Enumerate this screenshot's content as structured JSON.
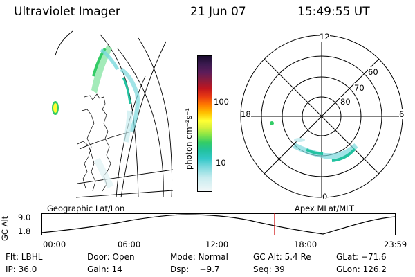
{
  "header": {
    "instrument": "Ultraviolet Imager",
    "date": "21 Jun 07",
    "time": "15:49:55 UT"
  },
  "colorbar": {
    "units_label": "photon cm⁻²s⁻¹",
    "ticks": [
      "100",
      "10"
    ],
    "scale": "log",
    "colors": [
      "#1a0b2e",
      "#3b1a4f",
      "#5c1c5a",
      "#8a1c3d",
      "#c0151e",
      "#e83a12",
      "#ff7a00",
      "#ffc000",
      "#ffff33",
      "#d6f03a",
      "#8ce645",
      "#33cc66",
      "#22c2a0",
      "#33c8c8",
      "#7ad9dd",
      "#c8ecef",
      "#f1f7f8"
    ]
  },
  "polar_plot": {
    "mlt_labels": {
      "top": "12",
      "right": "6",
      "bottom": "0",
      "left": "18"
    },
    "lat_labels": [
      "60",
      "70",
      "80"
    ]
  },
  "timeline": {
    "axis_label": "GC Alt",
    "y_ticks": [
      "9.0",
      "1.8"
    ],
    "left_title": "Geographic Lat/Lon",
    "right_title": "Apex MLat/MLT",
    "x_ticks": [
      "00:00",
      "06:00",
      "12:00",
      "18:00",
      "23:59"
    ],
    "marker_color": "#cc0000"
  },
  "info": {
    "row1": {
      "filter": "Flt: LBHL",
      "door": "Door: Open",
      "mode": "Mode: Normal",
      "gc_alt": "GC Alt: 5.4 Re",
      "glat": "GLat: −71.6"
    },
    "row2": {
      "ip": "IP: 36.0",
      "gain": "Gain: 14",
      "dsp": "Dsp:    −9.7",
      "seq": "Seq: 39",
      "glon": "GLon: 126.2"
    }
  }
}
